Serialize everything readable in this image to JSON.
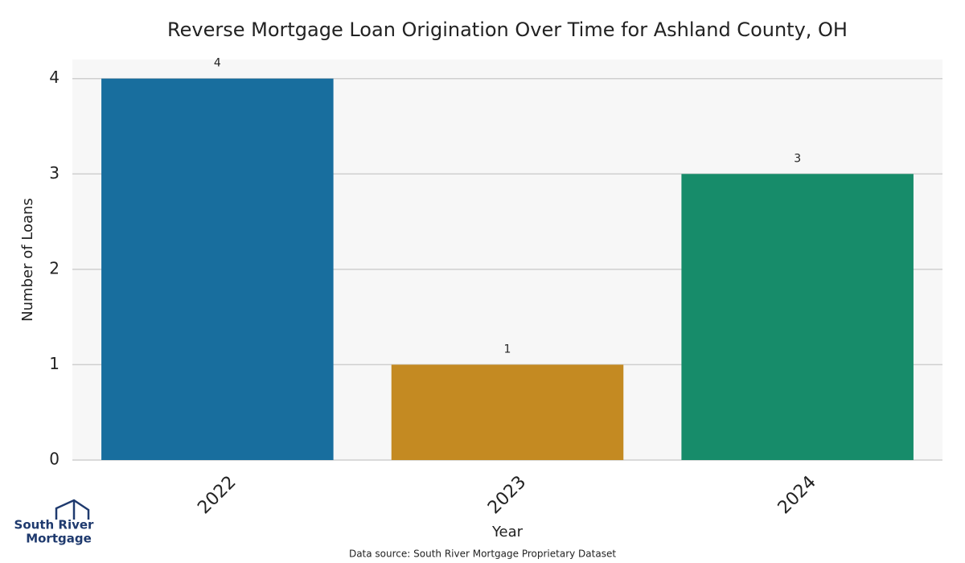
{
  "chart_data": {
    "type": "bar",
    "title": "Reverse Mortgage Loan Origination Over Time for Ashland County, OH",
    "x_label": "Year",
    "y_label": "Number of Loans",
    "categories": [
      "2022",
      "2023",
      "2024"
    ],
    "values": [
      4,
      1,
      3
    ],
    "colors": [
      "#186e9e",
      "#c48a22",
      "#178c6a"
    ],
    "ylim": [
      0,
      4.2
    ],
    "yticks": [
      0,
      1,
      2,
      3,
      4
    ],
    "grid": true,
    "source": "Data source: South River Mortgage Proprietary Dataset",
    "logo": [
      "South River",
      "Mortgage"
    ]
  }
}
